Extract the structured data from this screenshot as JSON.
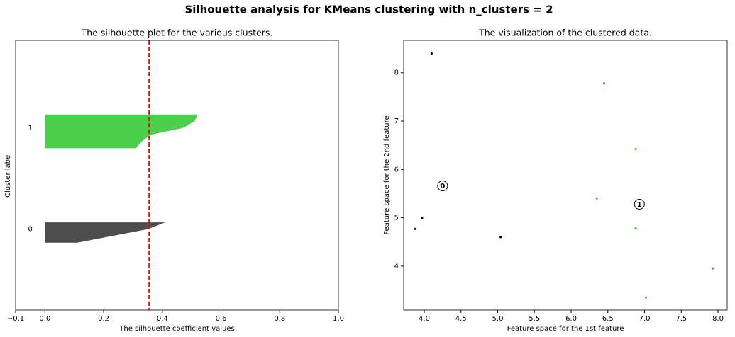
{
  "title": "Silhouette analysis for KMeans clustering with n_clusters = 2",
  "chart_data": [
    {
      "type": "silhouette",
      "title": "The silhouette plot for the various clusters.",
      "xlabel": "The silhouette coefficient values",
      "ylabel": "Cluster label",
      "xlim": [
        -0.1,
        1
      ],
      "ylim": [
        0,
        40
      ],
      "xticks": [
        {
          "value": -0.1,
          "label": "−0.1"
        },
        {
          "value": 0,
          "label": "0.0"
        },
        0.2,
        0.4,
        0.6,
        0.8,
        {
          "value": 1,
          "label": "1.0"
        }
      ],
      "average": 0.355,
      "average_color": "#ff0000",
      "series": [
        {
          "name": "0",
          "color": "#4d4d4d",
          "values": [
            0.11,
            0.23,
            0.35,
            0.41
          ]
        },
        {
          "name": "1",
          "color": "#4ccf4c",
          "values": [
            0.31,
            0.33,
            0.36,
            0.47,
            0.51,
            0.52
          ]
        }
      ]
    },
    {
      "type": "scatter",
      "title": "The visualization of the clustered data.",
      "xlabel": "Feature space for the 1st feature",
      "ylabel": "Feature space for the 2nd feature",
      "xlim": [
        3.72,
        8.125
      ],
      "ylim": [
        3.09,
        8.67
      ],
      "xticks": [
        {
          "value": 4,
          "label": "4.0"
        },
        4.5,
        {
          "value": 5,
          "label": "5.0"
        },
        5.5,
        {
          "value": 6,
          "label": "6.0"
        },
        6.5,
        {
          "value": 7,
          "label": "7.0"
        },
        7.5,
        {
          "value": 8,
          "label": "8.0"
        }
      ],
      "yticks": [
        4,
        5,
        6,
        7,
        8
      ],
      "series": [
        {
          "name": "0",
          "color": "#000000",
          "x": [
            4.1,
            3.97,
            3.88,
            5.04
          ],
          "y": [
            8.4,
            5.0,
            4.77,
            4.6
          ]
        },
        {
          "name": "1",
          "color": "#2ecc2e",
          "x": [
            6.45,
            6.88,
            6.35,
            6.88,
            7.93,
            7.02
          ],
          "y": [
            7.78,
            6.42,
            5.4,
            4.78,
            3.95,
            3.35
          ]
        }
      ],
      "centers": {
        "x": [
          4.25,
          6.93
        ],
        "y": [
          5.66,
          5.28
        ]
      }
    }
  ]
}
